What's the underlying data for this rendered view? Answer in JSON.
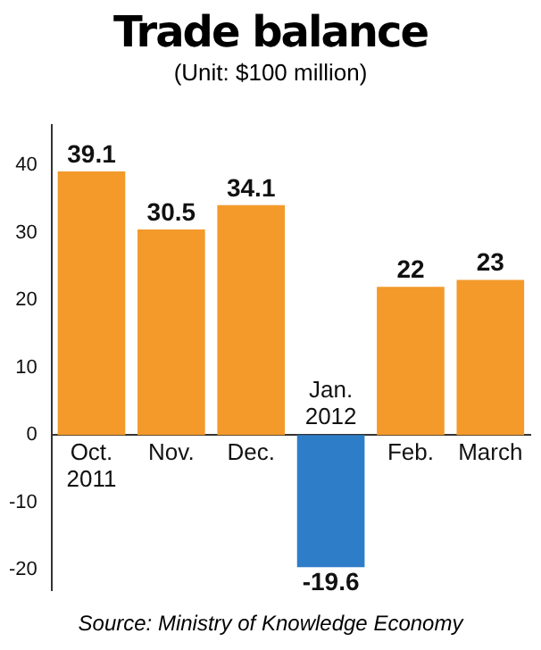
{
  "chart_data": {
    "type": "bar",
    "title": "Trade balance",
    "subtitle": "(Unit: $100 million)",
    "categories": [
      "Oct.\n2011",
      "Nov.",
      "Dec.",
      "Jan.\n2012",
      "Feb.",
      "March"
    ],
    "values": [
      39.1,
      30.5,
      34.1,
      -19.6,
      22,
      23
    ],
    "colors": [
      "#f39a2b",
      "#f39a2b",
      "#f39a2b",
      "#2e7dc8",
      "#f39a2b",
      "#f39a2b"
    ],
    "ylim": [
      -23,
      46
    ],
    "yticks": [
      -20,
      -10,
      0,
      10,
      20,
      30,
      40
    ],
    "grid": false,
    "legend": false,
    "data_labels": true,
    "annotations": [
      "Source: Ministry of Knowledge Economy"
    ]
  }
}
